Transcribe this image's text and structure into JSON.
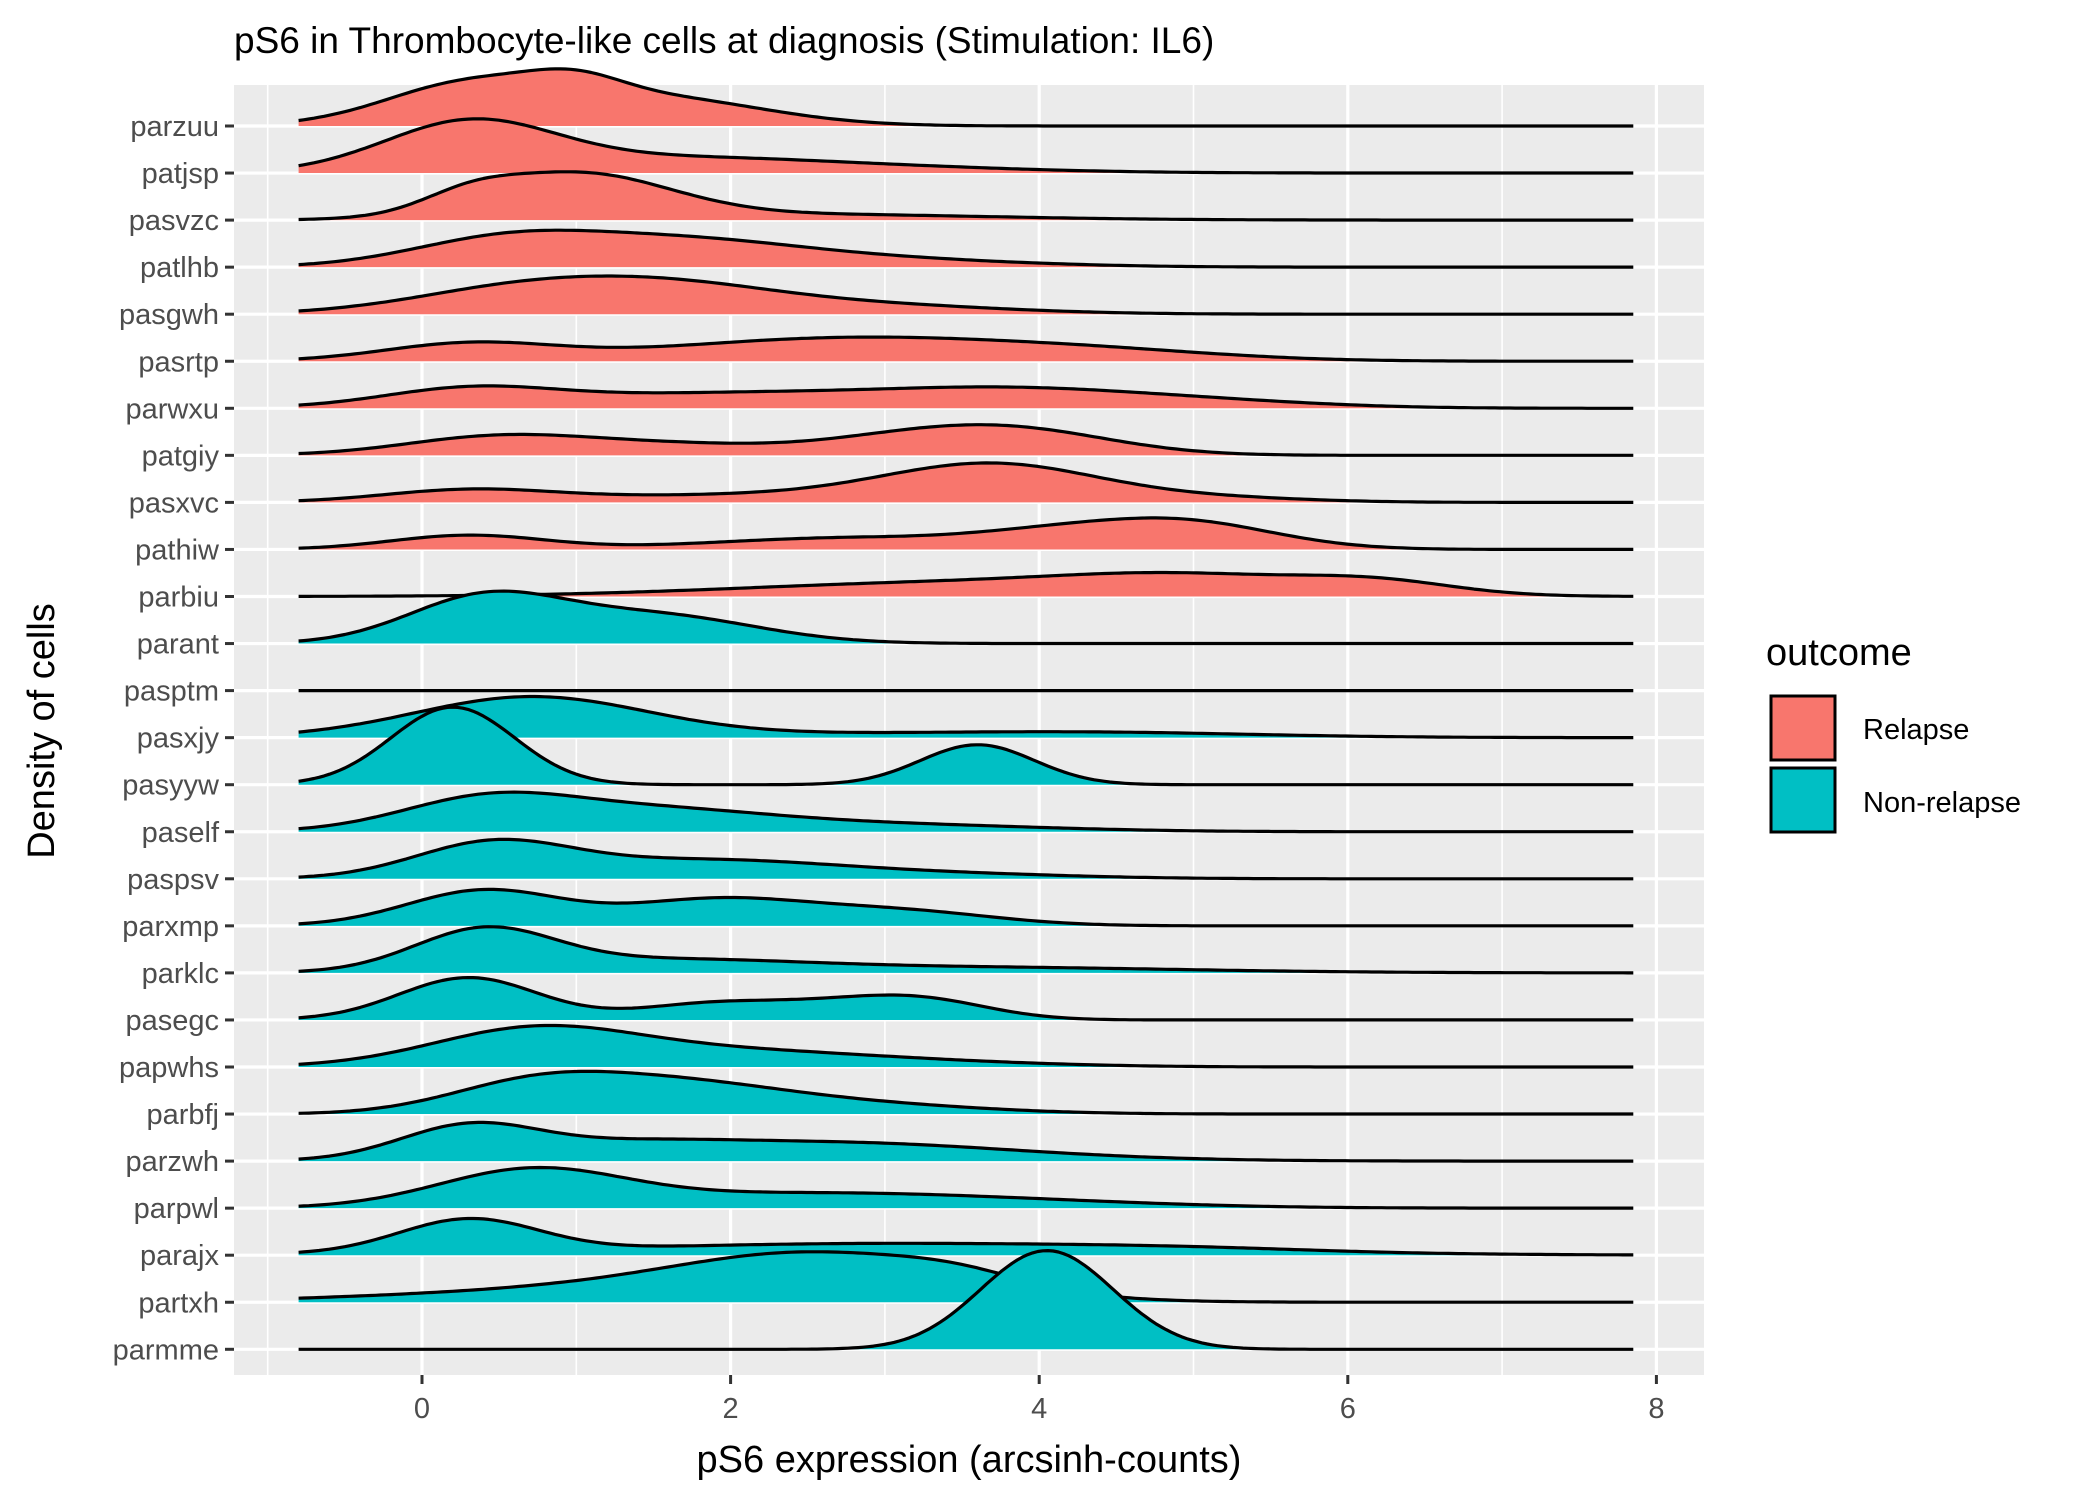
{
  "chart_data": {
    "type": "ridgeline",
    "title": "pS6 in Thrombocyte-like cells at diagnosis (Stimulation: IL6)",
    "xlabel": "pS6 expression (arcsinh-counts)",
    "ylabel": "Density of cells",
    "xlim": [
      -1.0,
      8.3
    ],
    "x_ticks": [
      0,
      2,
      4,
      6,
      8
    ],
    "x_tick_labels": [
      "0",
      "2",
      "4",
      "6",
      "8"
    ],
    "grid": true,
    "legend": {
      "title": "outcome",
      "position": "right",
      "entries": [
        {
          "label": "Relapse",
          "color": "#F8766D"
        },
        {
          "label": "Non-relapse",
          "color": "#00BFC4"
        }
      ]
    },
    "series": [
      {
        "name": "parzuu",
        "outcome": "Relapse",
        "peaks": [
          [
            0.3,
            0.55,
            0.85
          ],
          [
            1.5,
            0.7,
            0.6
          ],
          [
            1.0,
            0.3,
            0.35
          ]
        ]
      },
      {
        "name": "patjsp",
        "outcome": "Relapse",
        "peaks": [
          [
            0.3,
            0.55,
            1.0
          ],
          [
            1.5,
            1.0,
            0.3
          ],
          [
            3.0,
            1.0,
            0.1
          ]
        ]
      },
      {
        "name": "pasvzc",
        "outcome": "Relapse",
        "peaks": [
          [
            1.0,
            0.6,
            0.95
          ],
          [
            0.3,
            0.3,
            0.3
          ],
          [
            2.5,
            1.2,
            0.12
          ]
        ]
      },
      {
        "name": "patlhb",
        "outcome": "Relapse",
        "peaks": [
          [
            0.5,
            0.6,
            0.5
          ],
          [
            1.6,
            0.8,
            0.55
          ],
          [
            3.0,
            0.9,
            0.15
          ]
        ]
      },
      {
        "name": "pasgwh",
        "outcome": "Relapse",
        "peaks": [
          [
            0.6,
            0.7,
            0.5
          ],
          [
            1.6,
            0.7,
            0.5
          ],
          [
            2.8,
            0.9,
            0.2
          ]
        ]
      },
      {
        "name": "pasrtp",
        "outcome": "Relapse",
        "peaks": [
          [
            0.3,
            0.55,
            0.35
          ],
          [
            2.8,
            1.2,
            0.5
          ],
          [
            4.5,
            0.8,
            0.12
          ]
        ]
      },
      {
        "name": "parwxu",
        "outcome": "Relapse",
        "peaks": [
          [
            0.3,
            0.55,
            0.35
          ],
          [
            2.0,
            1.2,
            0.32
          ],
          [
            3.8,
            0.8,
            0.3
          ],
          [
            5.0,
            0.8,
            0.15
          ]
        ]
      },
      {
        "name": "patgiy",
        "outcome": "Relapse",
        "peaks": [
          [
            0.5,
            0.6,
            0.4
          ],
          [
            3.3,
            0.7,
            0.45
          ],
          [
            4.0,
            0.6,
            0.3
          ],
          [
            1.6,
            0.6,
            0.2
          ]
        ]
      },
      {
        "name": "pasxvc",
        "outcome": "Relapse",
        "peaks": [
          [
            0.3,
            0.55,
            0.25
          ],
          [
            3.7,
            0.7,
            0.8
          ],
          [
            2.0,
            1.0,
            0.15
          ],
          [
            5.2,
            0.6,
            0.08
          ]
        ]
      },
      {
        "name": "pathiw",
        "outcome": "Relapse",
        "peaks": [
          [
            0.3,
            0.5,
            0.3
          ],
          [
            4.9,
            0.6,
            0.6
          ],
          [
            2.8,
            0.9,
            0.25
          ],
          [
            4.0,
            0.5,
            0.2
          ]
        ]
      },
      {
        "name": "parbiu",
        "outcome": "Relapse",
        "peaks": [
          [
            3.5,
            1.4,
            0.3
          ],
          [
            5.0,
            0.8,
            0.32
          ],
          [
            6.2,
            0.5,
            0.25
          ]
        ]
      },
      {
        "name": "parant",
        "outcome": "Non-relapse",
        "peaks": [
          [
            0.4,
            0.5,
            0.95
          ],
          [
            1.5,
            0.65,
            0.6
          ]
        ]
      },
      {
        "name": "pasptm",
        "outcome": "Non-relapse",
        "peaks": []
      },
      {
        "name": "pasxjy",
        "outcome": "Non-relapse",
        "peaks": [
          [
            0.7,
            0.75,
            0.85
          ],
          [
            3.0,
            1.5,
            0.08
          ],
          [
            4.5,
            1.0,
            0.07
          ]
        ]
      },
      {
        "name": "pasyyw",
        "outcome": "Non-relapse",
        "peaks": [
          [
            0.2,
            0.4,
            1.65
          ],
          [
            3.6,
            0.37,
            0.85
          ]
        ]
      },
      {
        "name": "paself",
        "outcome": "Non-relapse",
        "peaks": [
          [
            0.4,
            0.55,
            0.6
          ],
          [
            1.4,
            0.8,
            0.45
          ],
          [
            3.0,
            1.0,
            0.15
          ]
        ]
      },
      {
        "name": "paspsv",
        "outcome": "Non-relapse",
        "peaks": [
          [
            0.45,
            0.5,
            0.7
          ],
          [
            1.8,
            0.9,
            0.4
          ],
          [
            3.5,
            0.8,
            0.08
          ]
        ]
      },
      {
        "name": "parxmp",
        "outcome": "Non-relapse",
        "peaks": [
          [
            0.4,
            0.5,
            0.75
          ],
          [
            1.9,
            0.6,
            0.55
          ],
          [
            3.1,
            0.6,
            0.3
          ]
        ]
      },
      {
        "name": "parklc",
        "outcome": "Non-relapse",
        "peaks": [
          [
            0.4,
            0.45,
            0.85
          ],
          [
            1.5,
            0.9,
            0.25
          ],
          [
            3.5,
            1.4,
            0.12
          ]
        ]
      },
      {
        "name": "pasegc",
        "outcome": "Non-relapse",
        "peaks": [
          [
            0.3,
            0.45,
            0.9
          ],
          [
            1.9,
            0.5,
            0.35
          ],
          [
            3.2,
            0.45,
            0.45
          ],
          [
            2.6,
            0.4,
            0.15
          ]
        ]
      },
      {
        "name": "papwhs",
        "outcome": "Non-relapse",
        "peaks": [
          [
            0.7,
            0.65,
            0.7
          ],
          [
            1.9,
            1.0,
            0.35
          ],
          [
            3.5,
            0.8,
            0.05
          ]
        ]
      },
      {
        "name": "parbfj",
        "outcome": "Non-relapse",
        "peaks": [
          [
            0.7,
            0.55,
            0.55
          ],
          [
            1.6,
            0.7,
            0.6
          ],
          [
            2.8,
            0.8,
            0.2
          ]
        ]
      },
      {
        "name": "parzwh",
        "outcome": "Non-relapse",
        "peaks": [
          [
            0.3,
            0.45,
            0.7
          ],
          [
            2.6,
            1.2,
            0.4
          ],
          [
            1.3,
            0.6,
            0.2
          ]
        ]
      },
      {
        "name": "parpwl",
        "outcome": "Non-relapse",
        "peaks": [
          [
            0.7,
            0.6,
            0.75
          ],
          [
            2.4,
            1.2,
            0.3
          ],
          [
            4.0,
            1.0,
            0.08
          ]
        ]
      },
      {
        "name": "parajx",
        "outcome": "Non-relapse",
        "peaks": [
          [
            0.3,
            0.45,
            0.7
          ],
          [
            3.0,
            1.8,
            0.25
          ],
          [
            5.0,
            0.8,
            0.05
          ]
        ]
      },
      {
        "name": "partxh",
        "outcome": "Non-relapse",
        "peaks": [
          [
            2.6,
            0.9,
            0.9
          ],
          [
            1.2,
            1.3,
            0.28
          ],
          [
            3.5,
            0.4,
            0.2
          ]
        ]
      },
      {
        "name": "parmme",
        "outcome": "Non-relapse",
        "peaks": [
          [
            4.05,
            0.43,
            2.1
          ]
        ]
      }
    ]
  }
}
